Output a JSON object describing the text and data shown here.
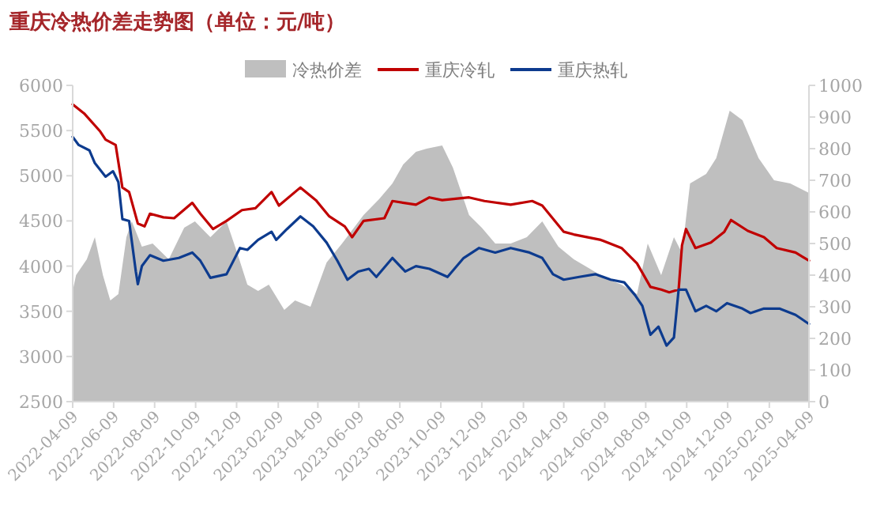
{
  "chart_data": {
    "type": "line",
    "title": "重庆冷热价差走势图（单位：元/吨）",
    "xlim": [
      "2022-04-09",
      "2025-04-09"
    ],
    "xticks": [
      "2022-04-09",
      "2022-06-09",
      "2022-08-09",
      "2022-10-09",
      "2022-12-09",
      "2023-02-09",
      "2023-04-09",
      "2023-06-09",
      "2023-08-09",
      "2023-10-09",
      "2023-12-09",
      "2024-02-09",
      "2024-04-09",
      "2024-06-09",
      "2024-08-09",
      "2024-10-09",
      "2024-12-09",
      "2025-02-09",
      "2025-04-09"
    ],
    "ylim": [
      2500,
      6000
    ],
    "yticks": [
      2500,
      3000,
      3500,
      4000,
      4500,
      5000,
      5500,
      6000
    ],
    "y2lim": [
      0,
      1000
    ],
    "y2ticks": [
      0,
      100,
      200,
      300,
      400,
      500,
      600,
      700,
      800,
      900,
      1000
    ],
    "legend": "top",
    "grid": false,
    "series": [
      {
        "name": "冷热价差",
        "type": "area",
        "axis": "y2",
        "color": "#bfbfbf",
        "x": [
          "2022-04-09",
          "2022-04-14",
          "2022-04-30",
          "2022-05-12",
          "2022-05-24",
          "2022-06-04",
          "2022-06-16",
          "2022-06-28",
          "2022-07-06",
          "2022-07-21",
          "2022-08-06",
          "2022-08-30",
          "2022-09-22",
          "2022-10-08",
          "2022-10-31",
          "2022-11-24",
          "2022-12-10",
          "2022-12-25",
          "2023-01-10",
          "2023-01-26",
          "2023-02-18",
          "2023-03-06",
          "2023-03-29",
          "2023-04-22",
          "2023-05-15",
          "2023-06-16",
          "2023-07-09",
          "2023-07-29",
          "2023-08-14",
          "2023-09-02",
          "2023-09-18",
          "2023-10-11",
          "2023-10-27",
          "2023-11-20",
          "2023-12-09",
          "2023-12-29",
          "2024-01-21",
          "2024-02-14",
          "2024-03-08",
          "2024-04-01",
          "2024-04-24",
          "2024-05-18",
          "2024-06-10",
          "2024-07-04",
          "2024-07-27",
          "2024-08-12",
          "2024-09-01",
          "2024-09-20",
          "2024-10-02",
          "2024-10-14",
          "2024-11-07",
          "2024-11-22",
          "2024-12-12",
          "2024-12-31",
          "2025-01-24",
          "2025-02-16",
          "2025-03-12",
          "2025-04-09"
        ],
        "values": [
          350,
          400,
          450,
          520,
          400,
          320,
          340,
          520,
          570,
          490,
          500,
          450,
          550,
          570,
          520,
          570,
          470,
          370,
          350,
          370,
          290,
          320,
          300,
          440,
          500,
          590,
          640,
          690,
          750,
          790,
          800,
          810,
          740,
          590,
          550,
          500,
          500,
          520,
          570,
          490,
          450,
          420,
          390,
          370,
          340,
          500,
          400,
          520,
          470,
          690,
          720,
          770,
          920,
          890,
          770,
          700,
          690,
          660
        ]
      },
      {
        "name": "重庆冷轧",
        "type": "line",
        "color": "#c00000",
        "x": [
          "2022-04-09",
          "2022-04-26",
          "2022-05-20",
          "2022-05-28",
          "2022-06-12",
          "2022-06-22",
          "2022-07-02",
          "2022-07-15",
          "2022-07-25",
          "2022-08-02",
          "2022-08-22",
          "2022-09-07",
          "2022-10-04",
          "2022-10-16",
          "2022-11-04",
          "2022-11-24",
          "2022-12-17",
          "2023-01-06",
          "2023-01-30",
          "2023-02-10",
          "2023-03-14",
          "2023-04-06",
          "2023-04-26",
          "2023-05-19",
          "2023-05-30",
          "2023-06-16",
          "2023-07-17",
          "2023-07-29",
          "2023-09-02",
          "2023-09-22",
          "2023-10-11",
          "2023-11-20",
          "2023-12-13",
          "2024-01-21",
          "2024-02-22",
          "2024-03-08",
          "2024-04-09",
          "2024-04-24",
          "2024-06-03",
          "2024-07-04",
          "2024-07-27",
          "2024-08-16",
          "2024-09-01",
          "2024-09-13",
          "2024-09-27",
          "2024-10-02",
          "2024-10-08",
          "2024-10-22",
          "2024-11-14",
          "2024-12-04",
          "2024-12-14",
          "2025-01-08",
          "2025-02-01",
          "2025-02-20",
          "2025-03-20",
          "2025-04-09"
        ],
        "values": [
          5790,
          5690,
          5490,
          5400,
          5340,
          4870,
          4820,
          4470,
          4440,
          4580,
          4540,
          4530,
          4700,
          4580,
          4410,
          4500,
          4620,
          4640,
          4820,
          4670,
          4870,
          4730,
          4550,
          4440,
          4320,
          4500,
          4530,
          4720,
          4680,
          4760,
          4730,
          4760,
          4720,
          4680,
          4720,
          4670,
          4380,
          4350,
          4290,
          4200,
          4030,
          3770,
          3740,
          3710,
          3740,
          4230,
          4410,
          4200,
          4260,
          4380,
          4510,
          4390,
          4320,
          4200,
          4150,
          4060
        ]
      },
      {
        "name": "重庆热轧",
        "type": "line",
        "color": "#0d3b8e",
        "x": [
          "2022-04-09",
          "2022-04-18",
          "2022-05-04",
          "2022-05-12",
          "2022-05-28",
          "2022-06-08",
          "2022-06-16",
          "2022-06-22",
          "2022-07-02",
          "2022-07-12",
          "2022-07-15",
          "2022-07-21",
          "2022-08-02",
          "2022-08-22",
          "2022-09-14",
          "2022-10-04",
          "2022-10-16",
          "2022-10-31",
          "2022-11-24",
          "2022-12-14",
          "2022-12-25",
          "2023-01-10",
          "2023-01-30",
          "2023-02-06",
          "2023-02-22",
          "2023-03-14",
          "2023-04-02",
          "2023-04-22",
          "2023-05-08",
          "2023-05-23",
          "2023-06-08",
          "2023-06-24",
          "2023-07-05",
          "2023-07-29",
          "2023-08-17",
          "2023-09-02",
          "2023-09-22",
          "2023-10-19",
          "2023-11-12",
          "2023-12-05",
          "2023-12-29",
          "2024-01-21",
          "2024-02-18",
          "2024-03-08",
          "2024-03-24",
          "2024-04-09",
          "2024-05-02",
          "2024-05-26",
          "2024-06-18",
          "2024-07-08",
          "2024-07-24",
          "2024-08-04",
          "2024-08-16",
          "2024-08-28",
          "2024-09-09",
          "2024-09-20",
          "2024-09-27",
          "2024-10-08",
          "2024-10-22",
          "2024-11-07",
          "2024-11-22",
          "2024-12-08",
          "2024-12-31",
          "2025-01-12",
          "2025-02-01",
          "2025-02-24",
          "2025-03-20",
          "2025-04-09"
        ],
        "values": [
          5430,
          5340,
          5280,
          5140,
          4990,
          5050,
          4930,
          4520,
          4500,
          3940,
          3800,
          4000,
          4120,
          4060,
          4090,
          4150,
          4060,
          3870,
          3910,
          4200,
          4180,
          4290,
          4380,
          4290,
          4410,
          4550,
          4440,
          4260,
          4060,
          3850,
          3940,
          3970,
          3880,
          4090,
          3940,
          4000,
          3970,
          3880,
          4090,
          4200,
          4150,
          4200,
          4150,
          4090,
          3910,
          3850,
          3880,
          3910,
          3850,
          3820,
          3680,
          3560,
          3240,
          3330,
          3120,
          3210,
          3740,
          3740,
          3500,
          3560,
          3500,
          3590,
          3530,
          3480,
          3530,
          3530,
          3460,
          3360
        ]
      }
    ]
  }
}
